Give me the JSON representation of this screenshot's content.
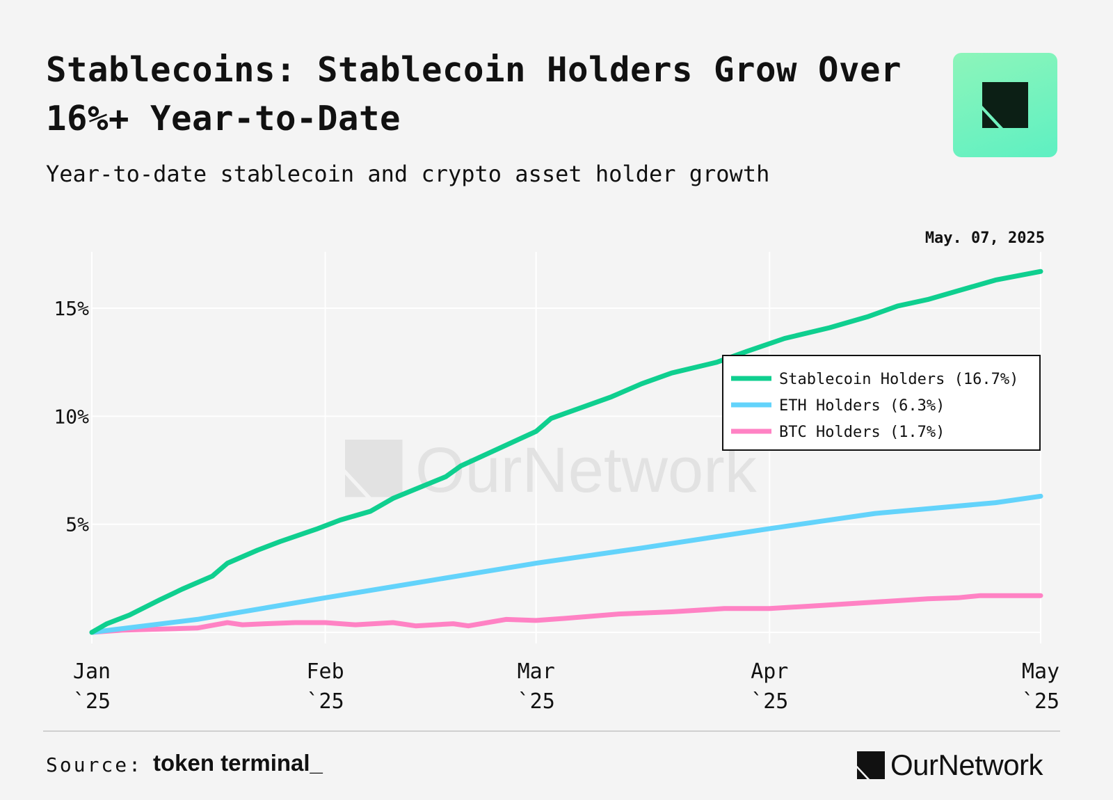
{
  "header": {
    "title": "Stablecoins: Stablecoin Holders Grow Over 16%+ Year-to-Date",
    "subtitle": "Year-to-date stablecoin and crypto asset holder growth",
    "date": "May. 07, 2025"
  },
  "brand": {
    "logo_icon": "ournetwork-logo-icon",
    "name": "OurNetwork",
    "accent": "#7ef3bf"
  },
  "footer": {
    "source_label": "Source:",
    "source_name": "token terminal_",
    "brand_name": "OurNetwork"
  },
  "chart_data": {
    "type": "line",
    "title": "",
    "xlabel": "",
    "ylabel": "",
    "watermark": "OurNetwork",
    "x_ticks": [
      {
        "label1": "Jan",
        "label2": "`25",
        "date": "2025-01-01"
      },
      {
        "label1": "Feb",
        "label2": "`25",
        "date": "2025-02-01"
      },
      {
        "label1": "Mar",
        "label2": "`25",
        "date": "2025-03-01"
      },
      {
        "label1": "Apr",
        "label2": "`25",
        "date": "2025-04-01"
      },
      {
        "label1": "May",
        "label2": "`25",
        "date": "2025-05-07"
      }
    ],
    "y_ticks": [
      {
        "label": "5%",
        "value": 5
      },
      {
        "label": "10%",
        "value": 10
      },
      {
        "label": "15%",
        "value": 15
      }
    ],
    "xlim": [
      "2025-01-01",
      "2025-05-07"
    ],
    "ylim": [
      -0.5,
      17.5
    ],
    "grid": true,
    "legend_position": "right",
    "series": [
      {
        "name": "Stablecoin Holders (16.7%)",
        "color": "#0fcf8f",
        "points": [
          [
            "2025-01-01",
            0.0
          ],
          [
            "2025-01-03",
            0.4
          ],
          [
            "2025-01-06",
            0.8
          ],
          [
            "2025-01-10",
            1.5
          ],
          [
            "2025-01-13",
            2.0
          ],
          [
            "2025-01-17",
            2.6
          ],
          [
            "2025-01-19",
            3.2
          ],
          [
            "2025-01-23",
            3.8
          ],
          [
            "2025-01-26",
            4.2
          ],
          [
            "2025-01-31",
            4.8
          ],
          [
            "2025-02-03",
            5.2
          ],
          [
            "2025-02-07",
            5.6
          ],
          [
            "2025-02-10",
            6.2
          ],
          [
            "2025-02-17",
            7.2
          ],
          [
            "2025-02-19",
            7.7
          ],
          [
            "2025-02-24",
            8.5
          ],
          [
            "2025-03-01",
            9.3
          ],
          [
            "2025-03-03",
            9.9
          ],
          [
            "2025-03-07",
            10.4
          ],
          [
            "2025-03-11",
            10.9
          ],
          [
            "2025-03-15",
            11.5
          ],
          [
            "2025-03-19",
            12.0
          ],
          [
            "2025-03-25",
            12.5
          ],
          [
            "2025-03-29",
            13.0
          ],
          [
            "2025-04-03",
            13.6
          ],
          [
            "2025-04-09",
            14.1
          ],
          [
            "2025-04-14",
            14.6
          ],
          [
            "2025-04-18",
            15.1
          ],
          [
            "2025-04-22",
            15.4
          ],
          [
            "2025-04-26",
            15.8
          ],
          [
            "2025-05-01",
            16.3
          ],
          [
            "2025-05-07",
            16.7
          ]
        ]
      },
      {
        "name": "ETH Holders (6.3%)",
        "color": "#63d3fb",
        "points": [
          [
            "2025-01-01",
            0.0
          ],
          [
            "2025-01-15",
            0.6
          ],
          [
            "2025-02-01",
            1.6
          ],
          [
            "2025-02-15",
            2.4
          ],
          [
            "2025-03-01",
            3.2
          ],
          [
            "2025-03-15",
            3.9
          ],
          [
            "2025-04-01",
            4.8
          ],
          [
            "2025-04-15",
            5.5
          ],
          [
            "2025-05-01",
            6.0
          ],
          [
            "2025-05-07",
            6.3
          ]
        ]
      },
      {
        "name": "BTC Holders (1.7%)",
        "color": "#ff82c4",
        "points": [
          [
            "2025-01-01",
            0.0
          ],
          [
            "2025-01-05",
            0.1
          ],
          [
            "2025-01-15",
            0.2
          ],
          [
            "2025-01-19",
            0.45
          ],
          [
            "2025-01-21",
            0.35
          ],
          [
            "2025-01-24",
            0.4
          ],
          [
            "2025-01-28",
            0.45
          ],
          [
            "2025-02-01",
            0.45
          ],
          [
            "2025-02-05",
            0.35
          ],
          [
            "2025-02-10",
            0.45
          ],
          [
            "2025-02-13",
            0.3
          ],
          [
            "2025-02-18",
            0.4
          ],
          [
            "2025-02-20",
            0.3
          ],
          [
            "2025-02-25",
            0.6
          ],
          [
            "2025-03-01",
            0.55
          ],
          [
            "2025-03-05",
            0.65
          ],
          [
            "2025-03-12",
            0.85
          ],
          [
            "2025-03-19",
            0.95
          ],
          [
            "2025-03-26",
            1.1
          ],
          [
            "2025-04-01",
            1.1
          ],
          [
            "2025-04-08",
            1.25
          ],
          [
            "2025-04-15",
            1.4
          ],
          [
            "2025-04-22",
            1.55
          ],
          [
            "2025-04-26",
            1.6
          ],
          [
            "2025-04-29",
            1.7
          ],
          [
            "2025-05-02",
            1.7
          ],
          [
            "2025-05-07",
            1.7
          ]
        ]
      }
    ]
  }
}
